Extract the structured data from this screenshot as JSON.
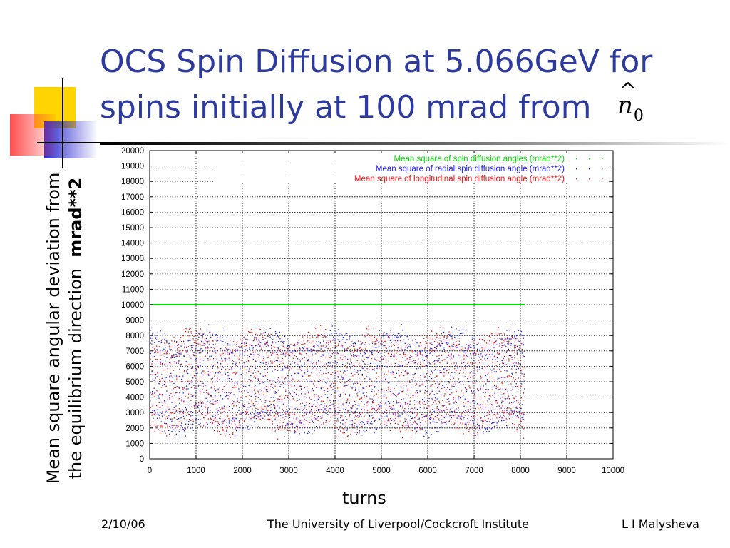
{
  "title": {
    "line1": "OCS Spin Diffusion at 5.066GeV for",
    "line2": "spins initially at 100 mrad from",
    "symbol": "n",
    "symbol_sub": "0"
  },
  "ylabel": {
    "line1": "Mean square angular deviation from",
    "line2_a": "the equilibrium direction",
    "line2_b": "mrad**2"
  },
  "footer": {
    "date": "2/10/06",
    "institution": "The University of Liverpool/Cockcroft Institute",
    "author": "L I Malysheva"
  },
  "colors": {
    "title": "#2e3b9e",
    "green": "#00dd00",
    "blue": "#1a1aff",
    "red": "#ee1111"
  },
  "chart_data": {
    "type": "scatter",
    "xlabel": "turns",
    "ylabel": "Mean square angular deviation from the equilibrium direction mrad**2",
    "xlim": [
      0,
      10000
    ],
    "ylim": [
      0,
      20000
    ],
    "xticks": [
      0,
      1000,
      2000,
      3000,
      4000,
      5000,
      6000,
      7000,
      8000,
      9000,
      10000
    ],
    "yticks": [
      0,
      1000,
      2000,
      3000,
      4000,
      5000,
      6000,
      7000,
      8000,
      9000,
      10000,
      11000,
      12000,
      13000,
      14000,
      15000,
      16000,
      17000,
      18000,
      19000,
      20000
    ],
    "grid": true,
    "legend_position": "top-right",
    "series": [
      {
        "name": "Mean square of spin diffusion angles (mrad**2)",
        "color": "#00dd00",
        "style": "constant",
        "x_range": [
          0,
          8100
        ],
        "value": 10000
      },
      {
        "name": "Mean square of radial spin diffusion angle (mrad**2)",
        "color": "#1a1aff",
        "style": "oscillating",
        "x_range": [
          0,
          8100
        ],
        "y_range": [
          1000,
          9000
        ],
        "envelope": [
          2000,
          8000
        ]
      },
      {
        "name": "Mean square of longitudinal spin diffusion angle (mrad**2)",
        "color": "#ee1111",
        "style": "oscillating",
        "x_range": [
          0,
          8100
        ],
        "y_range": [
          1000,
          9000
        ],
        "envelope": [
          2000,
          8000
        ]
      }
    ]
  }
}
